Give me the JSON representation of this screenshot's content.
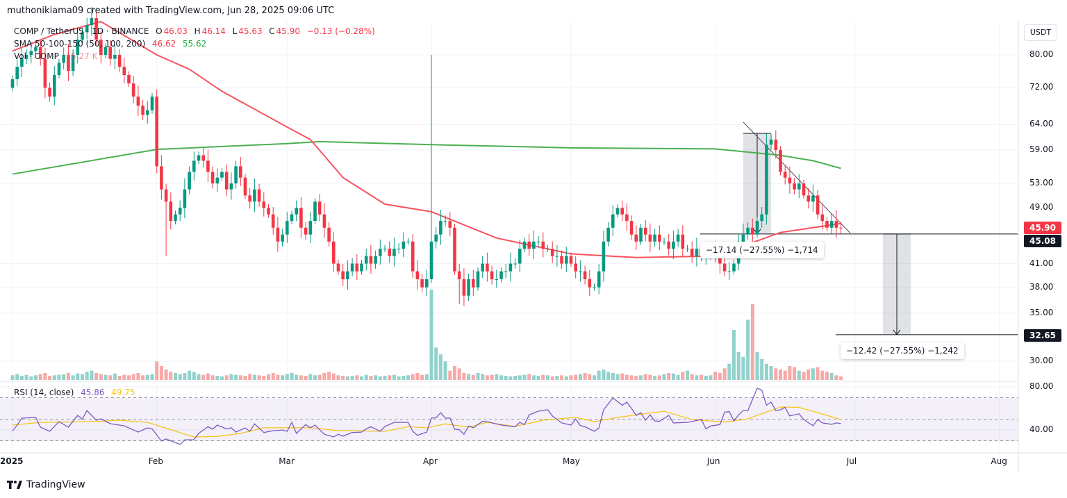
{
  "header": {
    "attribution": "muthonikiama09 created with TradingView.com, Jun 28, 2025 09:06 UTC"
  },
  "legend": {
    "symbol": "COMP / TetherUS · 1D · BINANCE",
    "o_label": "O",
    "o": "46.03",
    "h_label": "H",
    "h": "46.14",
    "l_label": "L",
    "l": "45.63",
    "c_label": "C",
    "c": "45.90",
    "change": "−0.13 (−0.28%)",
    "sma_label": "SMA 50-100-150 (50, 100, 200)",
    "sma_fast": "46.62",
    "sma_slow": "55.62",
    "vol_label": "Vol · COMP",
    "vol": "15.27 K",
    "rsi_label": "RSI (14, close)",
    "rsi": "45.86",
    "rsi_ma": "49.75"
  },
  "currency_button": "USDT",
  "footer": {
    "logo_text": "TradingView"
  },
  "measures": {
    "upper": "−17.14 (−27.55%) −1,714",
    "lower": "−12.42 (−27.55%) −1,242"
  },
  "chart_data": {
    "type": "candlestick",
    "price_scale": "log",
    "grid": true,
    "colors": {
      "up": "#089981",
      "down": "#f23645",
      "sma50": "#f7525f",
      "sma200": "#4caf50",
      "rsi": "#7e57c2",
      "rsi_ma": "#f5c518",
      "last_price": "#f23645"
    },
    "price_ticks": [
      "80.00",
      "72.00",
      "64.00",
      "59.00",
      "53.00",
      "49.00",
      "41.00",
      "38.00",
      "35.00",
      "30.00"
    ],
    "price_labels": {
      "last": "45.90",
      "level_upper": "45.08",
      "level_lower": "32.65"
    },
    "time_ticks": [
      "2025",
      "Feb",
      "Mar",
      "Apr",
      "May",
      "Jun",
      "Jul",
      "Aug"
    ],
    "rsi_ticks": [
      "80.00",
      "40.00"
    ],
    "rsi_bands": [
      70,
      50,
      30
    ],
    "start_date": "2025-01-01",
    "close": [
      74,
      77,
      79,
      80,
      81,
      82,
      79,
      72,
      70,
      75,
      78,
      80,
      76,
      80,
      84,
      86,
      88,
      90,
      84,
      80,
      82,
      79,
      80,
      77,
      75,
      73,
      70,
      68,
      66,
      67,
      70,
      56,
      52,
      50,
      47,
      48,
      49,
      52,
      55,
      57,
      58,
      57,
      55,
      53,
      54,
      55,
      52,
      53,
      56,
      54,
      51,
      50,
      52,
      50,
      49,
      48,
      46,
      44,
      45,
      47,
      48,
      49,
      46,
      45,
      47,
      50,
      48,
      46,
      44,
      41,
      40,
      39,
      40,
      41,
      40,
      41,
      42,
      41,
      42,
      43,
      43,
      42,
      43,
      43,
      44,
      44,
      40,
      39,
      38,
      39,
      44,
      45,
      47,
      47,
      46,
      40,
      39,
      37,
      39,
      38,
      40,
      41,
      40,
      39,
      39,
      40,
      40,
      41,
      41,
      43,
      44,
      43,
      44,
      44,
      43,
      43,
      42,
      42,
      41,
      42,
      41,
      40,
      40,
      39,
      38,
      38,
      40,
      44,
      46,
      48,
      49,
      48,
      47,
      45,
      44,
      46,
      45,
      44,
      45,
      44,
      44,
      43,
      44,
      45,
      43,
      43,
      42,
      43,
      42,
      42,
      43,
      42,
      41,
      40,
      40,
      41,
      44,
      45,
      46,
      45,
      47,
      48,
      60,
      61,
      59,
      55,
      54,
      53,
      52,
      53,
      51,
      50,
      51,
      48,
      47,
      46,
      47,
      46,
      45.9
    ],
    "extremes": [
      {
        "date": "2025-04-01",
        "high": 80
      },
      {
        "date": "2025-02-03",
        "low": 42
      },
      {
        "date": "2025-04-07",
        "low": 36
      }
    ],
    "volume_k": [
      20,
      25,
      18,
      22,
      15,
      20,
      25,
      30,
      18,
      20,
      22,
      25,
      30,
      20,
      28,
      25,
      35,
      40,
      30,
      25,
      22,
      20,
      28,
      18,
      22,
      20,
      25,
      30,
      20,
      22,
      25,
      80,
      60,
      45,
      35,
      30,
      25,
      30,
      40,
      35,
      25,
      22,
      28,
      20,
      18,
      15,
      20,
      25,
      22,
      20,
      18,
      25,
      22,
      20,
      18,
      25,
      30,
      22,
      20,
      25,
      30,
      22,
      20,
      18,
      25,
      20,
      22,
      30,
      35,
      28,
      20,
      18,
      15,
      18,
      20,
      15,
      22,
      18,
      20,
      15,
      18,
      20,
      22,
      15,
      18,
      20,
      25,
      30,
      22,
      25,
      390,
      140,
      110,
      80,
      40,
      60,
      50,
      30,
      25,
      22,
      30,
      25,
      20,
      22,
      25,
      20,
      18,
      15,
      18,
      20,
      22,
      25,
      20,
      18,
      22,
      20,
      15,
      18,
      20,
      15,
      20,
      22,
      25,
      30,
      25,
      20,
      40,
      45,
      35,
      30,
      25,
      28,
      22,
      20,
      18,
      20,
      25,
      22,
      18,
      20,
      25,
      30,
      28,
      22,
      35,
      40,
      25,
      20,
      22,
      18,
      20,
      35,
      30,
      50,
      70,
      216,
      120,
      100,
      260,
      327,
      120,
      90,
      70,
      60,
      50,
      45,
      40,
      60,
      55,
      40,
      35,
      45,
      50,
      55,
      40,
      35,
      30,
      20,
      15.27
    ],
    "sma50": [
      [
        "2025-01-01",
        81
      ],
      [
        "2025-01-10",
        85.4
      ],
      [
        "2025-01-20",
        89
      ],
      [
        "2025-02-01",
        80
      ],
      [
        "2025-02-08",
        76.4
      ],
      [
        "2025-02-15",
        71.2
      ],
      [
        "2025-03-01",
        63.5
      ],
      [
        "2025-03-06",
        61
      ],
      [
        "2025-03-13",
        54
      ],
      [
        "2025-03-22",
        49.6
      ],
      [
        "2025-04-01",
        48.4
      ],
      [
        "2025-04-15",
        44.5
      ],
      [
        "2025-05-01",
        42.3
      ],
      [
        "2025-05-15",
        41.8
      ],
      [
        "2025-06-01",
        42
      ],
      [
        "2025-06-15",
        45.3
      ],
      [
        "2025-06-28",
        46.62
      ]
    ],
    "sma200": [
      [
        "2025-01-01",
        54.6
      ],
      [
        "2025-02-01",
        59.1
      ],
      [
        "2025-03-01",
        60.2
      ],
      [
        "2025-03-08",
        60.6
      ],
      [
        "2025-04-01",
        60
      ],
      [
        "2025-05-01",
        59.4
      ],
      [
        "2025-06-01",
        59.2
      ],
      [
        "2025-06-15",
        58
      ],
      [
        "2025-06-22",
        57
      ],
      [
        "2025-06-28",
        55.62
      ]
    ],
    "rsi": [
      [
        "2025-01-01",
        39
      ],
      [
        "2025-01-02",
        44.5
      ],
      [
        "2025-01-03",
        51
      ],
      [
        "2025-01-06",
        51.6
      ],
      [
        "2025-01-07",
        42.6
      ],
      [
        "2025-01-09",
        38.7
      ],
      [
        "2025-01-11",
        47.7
      ],
      [
        "2025-01-13",
        42.6
      ],
      [
        "2025-01-15",
        53.5
      ],
      [
        "2025-01-16",
        50
      ],
      [
        "2025-01-17",
        58
      ],
      [
        "2025-01-19",
        49
      ],
      [
        "2025-01-20",
        50.3
      ],
      [
        "2025-01-22",
        45.8
      ],
      [
        "2025-01-25",
        43.8
      ],
      [
        "2025-01-28",
        38
      ],
      [
        "2025-01-30",
        41.9
      ],
      [
        "2025-01-31",
        41
      ],
      [
        "2025-02-02",
        29.7
      ],
      [
        "2025-02-03",
        31.6
      ],
      [
        "2025-02-06",
        26.5
      ],
      [
        "2025-02-07",
        30.8
      ],
      [
        "2025-02-09",
        31
      ],
      [
        "2025-02-10",
        36.8
      ],
      [
        "2025-02-12",
        43
      ],
      [
        "2025-02-13",
        40.8
      ],
      [
        "2025-02-14",
        44.5
      ],
      [
        "2025-02-16",
        41
      ],
      [
        "2025-02-17",
        42
      ],
      [
        "2025-02-18",
        38
      ],
      [
        "2025-02-20",
        41.9
      ],
      [
        "2025-02-21",
        38.7
      ],
      [
        "2025-02-22",
        45.6
      ],
      [
        "2025-02-24",
        37.6
      ],
      [
        "2025-02-26",
        39.3
      ],
      [
        "2025-02-28",
        39.9
      ],
      [
        "2025-03-01",
        38.7
      ],
      [
        "2025-03-02",
        47
      ],
      [
        "2025-03-03",
        36.8
      ],
      [
        "2025-03-05",
        45
      ],
      [
        "2025-03-06",
        42
      ],
      [
        "2025-03-07",
        44.5
      ],
      [
        "2025-03-09",
        36
      ],
      [
        "2025-03-11",
        33.5
      ],
      [
        "2025-03-12",
        36
      ],
      [
        "2025-03-13",
        34.2
      ],
      [
        "2025-03-15",
        37.6
      ],
      [
        "2025-03-17",
        38
      ],
      [
        "2025-03-18",
        41
      ],
      [
        "2025-03-19",
        43
      ],
      [
        "2025-03-21",
        38.7
      ],
      [
        "2025-03-22",
        43.2
      ],
      [
        "2025-03-24",
        47
      ],
      [
        "2025-03-27",
        47
      ],
      [
        "2025-03-28",
        38.7
      ],
      [
        "2025-03-29",
        35
      ],
      [
        "2025-03-31",
        38
      ],
      [
        "2025-04-01",
        51
      ],
      [
        "2025-04-02",
        51.3
      ],
      [
        "2025-04-03",
        56
      ],
      [
        "2025-04-04",
        51
      ],
      [
        "2025-04-05",
        51
      ],
      [
        "2025-04-06",
        40.6
      ],
      [
        "2025-04-07",
        40.3
      ],
      [
        "2025-04-08",
        36
      ],
      [
        "2025-04-09",
        43.6
      ],
      [
        "2025-04-10",
        42
      ],
      [
        "2025-04-12",
        48
      ],
      [
        "2025-04-13",
        47.7
      ],
      [
        "2025-04-16",
        44.5
      ],
      [
        "2025-04-19",
        43
      ],
      [
        "2025-04-20",
        47
      ],
      [
        "2025-04-21",
        45
      ],
      [
        "2025-04-22",
        54
      ],
      [
        "2025-04-24",
        57.4
      ],
      [
        "2025-04-26",
        58.7
      ],
      [
        "2025-04-27",
        53
      ],
      [
        "2025-04-29",
        46.5
      ],
      [
        "2025-05-01",
        44.5
      ],
      [
        "2025-05-02",
        50
      ],
      [
        "2025-05-03",
        44
      ],
      [
        "2025-05-04",
        43
      ],
      [
        "2025-05-06",
        38.7
      ],
      [
        "2025-05-07",
        41.9
      ],
      [
        "2025-05-08",
        58.7
      ],
      [
        "2025-05-10",
        69.7
      ],
      [
        "2025-05-12",
        63
      ],
      [
        "2025-05-13",
        65.8
      ],
      [
        "2025-05-14",
        60
      ],
      [
        "2025-05-15",
        53.5
      ],
      [
        "2025-05-16",
        56
      ],
      [
        "2025-05-17",
        49
      ],
      [
        "2025-05-18",
        54
      ],
      [
        "2025-05-19",
        48.4
      ],
      [
        "2025-05-20",
        48
      ],
      [
        "2025-05-22",
        53.5
      ],
      [
        "2025-05-23",
        46.5
      ],
      [
        "2025-05-26",
        47
      ],
      [
        "2025-05-29",
        49.6
      ],
      [
        "2025-05-30",
        41
      ],
      [
        "2025-05-31",
        43.7
      ],
      [
        "2025-06-02",
        45
      ],
      [
        "2025-06-03",
        56.6
      ],
      [
        "2025-06-04",
        57
      ],
      [
        "2025-06-05",
        48.4
      ],
      [
        "2025-06-06",
        54
      ],
      [
        "2025-06-07",
        58
      ],
      [
        "2025-06-08",
        58
      ],
      [
        "2025-06-10",
        78.7
      ],
      [
        "2025-06-11",
        77
      ],
      [
        "2025-06-12",
        63
      ],
      [
        "2025-06-13",
        65.8
      ],
      [
        "2025-06-14",
        58
      ],
      [
        "2025-06-15",
        58.7
      ],
      [
        "2025-06-16",
        61
      ],
      [
        "2025-06-17",
        53
      ],
      [
        "2025-06-19",
        55
      ],
      [
        "2025-06-20",
        49.7
      ],
      [
        "2025-06-22",
        43.9
      ],
      [
        "2025-06-23",
        49.7
      ],
      [
        "2025-06-24",
        46.5
      ],
      [
        "2025-06-26",
        45.2
      ],
      [
        "2025-06-27",
        46.5
      ],
      [
        "2025-06-28",
        45.86
      ]
    ],
    "rsi_ma": [
      [
        "2025-01-01",
        44.5
      ],
      [
        "2025-01-07",
        47
      ],
      [
        "2025-01-18",
        47.7
      ],
      [
        "2025-01-24",
        49
      ],
      [
        "2025-01-30",
        47
      ],
      [
        "2025-02-09",
        33.5
      ],
      [
        "2025-02-14",
        34
      ],
      [
        "2025-02-19",
        36.8
      ],
      [
        "2025-02-24",
        42
      ],
      [
        "2025-03-06",
        42
      ],
      [
        "2025-03-12",
        39.5
      ],
      [
        "2025-03-22",
        38.7
      ],
      [
        "2025-03-27",
        43
      ],
      [
        "2025-03-31",
        42
      ],
      [
        "2025-04-04",
        45.6
      ],
      [
        "2025-04-09",
        42.6
      ],
      [
        "2025-04-13",
        47
      ],
      [
        "2025-04-19",
        43.2
      ],
      [
        "2025-04-25",
        49
      ],
      [
        "2025-05-02",
        51.7
      ],
      [
        "2025-05-06",
        47.7
      ],
      [
        "2025-05-11",
        51.7
      ],
      [
        "2025-05-21",
        57.4
      ],
      [
        "2025-05-27",
        49.6
      ],
      [
        "2025-06-03",
        47.3
      ],
      [
        "2025-06-08",
        50.3
      ],
      [
        "2025-06-15",
        61.3
      ],
      [
        "2025-06-19",
        61
      ],
      [
        "2025-06-23",
        56
      ],
      [
        "2025-06-28",
        49.75
      ]
    ],
    "levels": [
      45.08,
      32.65
    ],
    "trendline": [
      [
        "2025-06-07",
        64.5
      ],
      [
        "2025-06-30",
        45.2
      ]
    ],
    "measure_upper": {
      "from_date": "2025-06-07",
      "to_date": "2025-06-13",
      "from_price": 62.22,
      "to_price": 45.08
    },
    "measure_lower": {
      "from_date": "2025-07-07",
      "to_date": "2025-07-13",
      "from_price": 45.08,
      "to_price": 32.65
    }
  }
}
